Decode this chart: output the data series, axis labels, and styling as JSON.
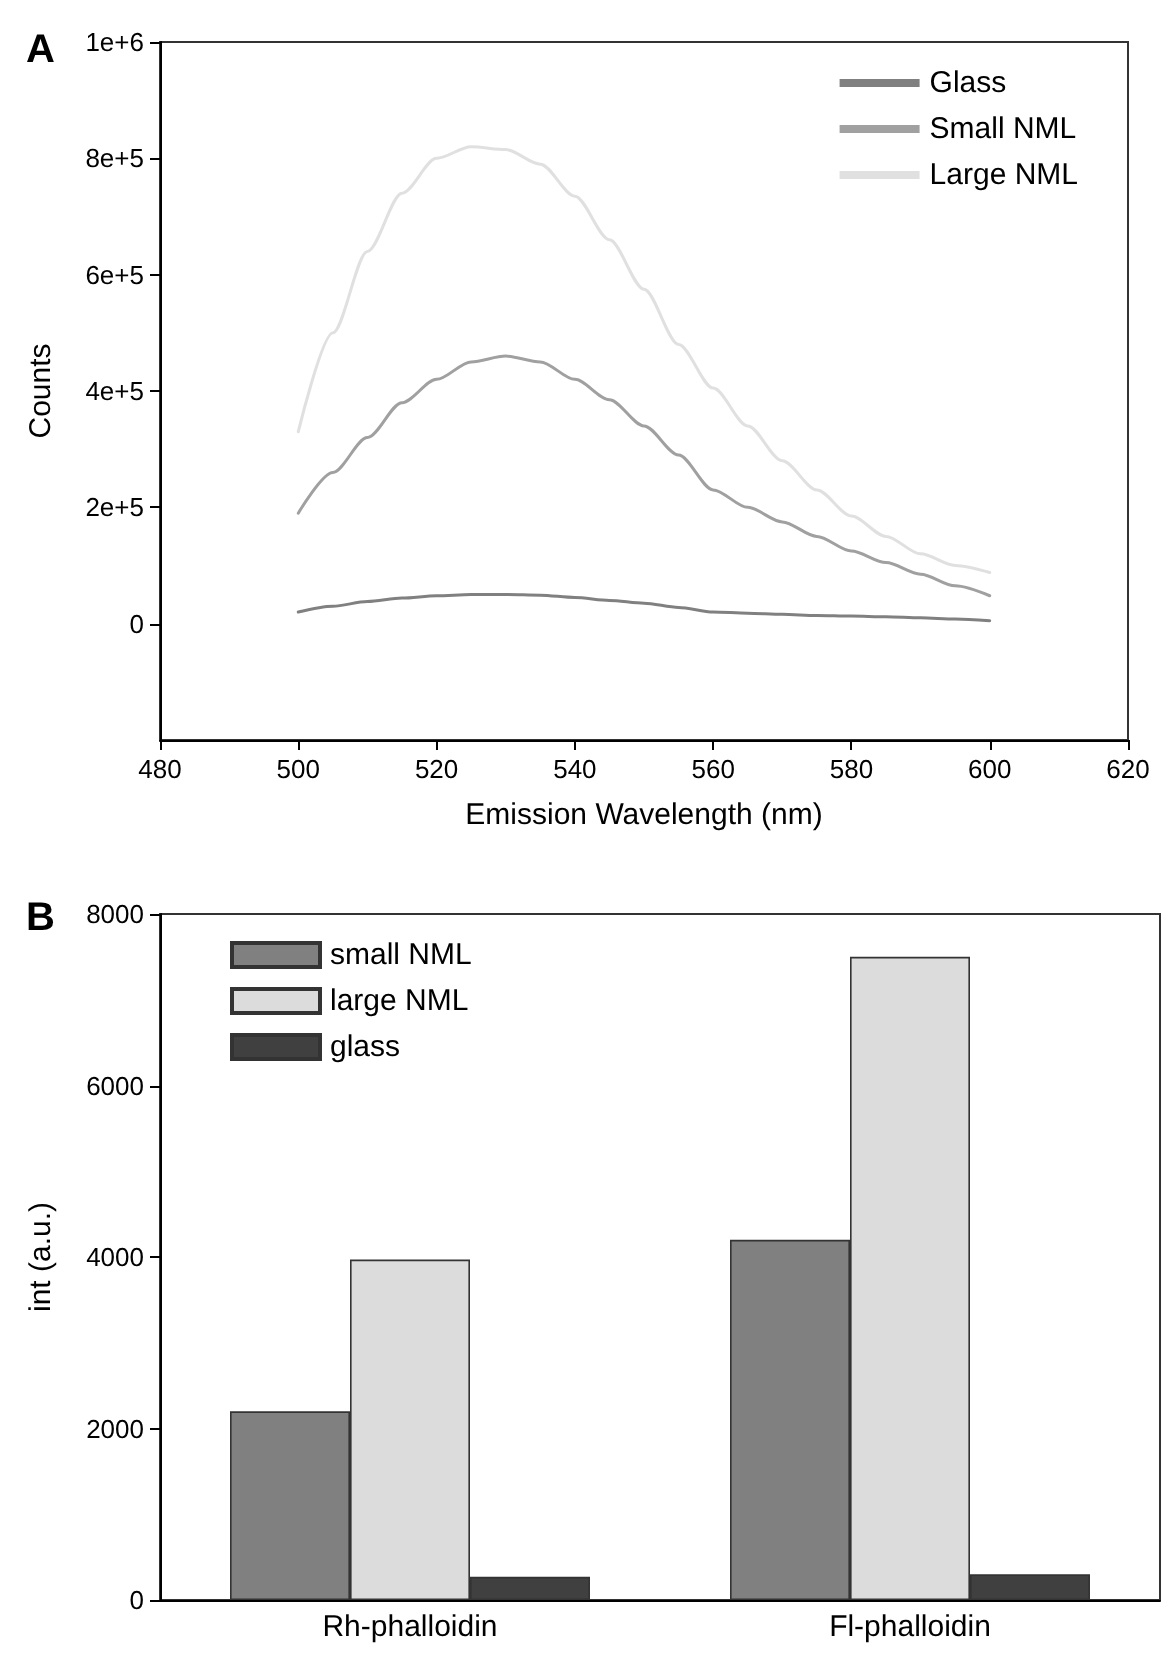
{
  "chart_data": [
    {
      "type": "line",
      "title": "A",
      "xlabel": "Emission Wavelength (nm)",
      "ylabel": "Counts",
      "x": [
        500,
        505,
        510,
        515,
        520,
        525,
        530,
        535,
        540,
        545,
        550,
        555,
        560,
        565,
        570,
        575,
        580,
        585,
        590,
        595,
        600
      ],
      "series": [
        {
          "name": "Glass",
          "color": "#808080",
          "values": [
            20000,
            30000,
            38000,
            44000,
            48000,
            50000,
            50000,
            49000,
            45000,
            40000,
            35000,
            28000,
            20000,
            18000,
            16000,
            14000,
            13000,
            12000,
            10000,
            8000,
            5000
          ]
        },
        {
          "name": "Small NML",
          "color": "#a0a0a0",
          "values": [
            190000,
            260000,
            320000,
            380000,
            420000,
            450000,
            460000,
            450000,
            420000,
            385000,
            340000,
            290000,
            230000,
            200000,
            175000,
            150000,
            125000,
            105000,
            85000,
            65000,
            48000
          ]
        },
        {
          "name": "Large NML",
          "color": "#e0e0e0",
          "values": [
            330000,
            500000,
            640000,
            740000,
            800000,
            820000,
            815000,
            790000,
            735000,
            660000,
            575000,
            480000,
            405000,
            340000,
            280000,
            230000,
            185000,
            150000,
            120000,
            100000,
            88000
          ]
        }
      ],
      "xlim": [
        480,
        620
      ],
      "xticks": [
        480,
        500,
        520,
        540,
        560,
        580,
        600,
        620
      ],
      "ylim": [
        -200000,
        1000000
      ],
      "yticks": [
        {
          "value": 0,
          "label": "0"
        },
        {
          "value": 200000,
          "label": "2e+5"
        },
        {
          "value": 400000,
          "label": "4e+5"
        },
        {
          "value": 600000,
          "label": "6e+5"
        },
        {
          "value": 800000,
          "label": "8e+5"
        },
        {
          "value": 1000000,
          "label": "1e+6"
        }
      ],
      "marker": "none",
      "line_style": "solid",
      "grid": false,
      "legend": "top right"
    },
    {
      "type": "bar",
      "title": "B",
      "ylabel": "int (a.u.)",
      "categories": [
        "Rh-phalloidin",
        "Fl-phalloidin"
      ],
      "series": [
        {
          "name": "small NML",
          "color": "#808080",
          "values": [
            2200,
            4200
          ]
        },
        {
          "name": "large NML",
          "color": "#dcdcdc",
          "values": [
            3970,
            7500
          ]
        },
        {
          "name": "glass",
          "color": "#404040",
          "values": [
            270,
            300
          ]
        }
      ],
      "ylim": [
        0,
        8000
      ],
      "yticks": [
        0,
        2000,
        4000,
        6000,
        8000
      ],
      "grid": false,
      "legend": "top left"
    }
  ]
}
